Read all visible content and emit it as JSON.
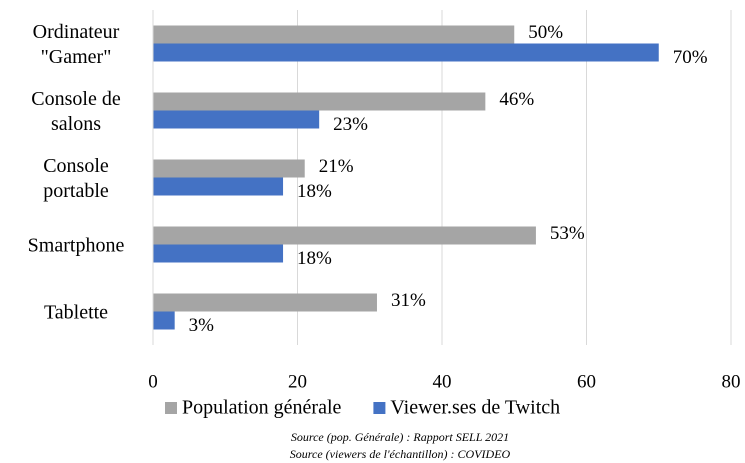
{
  "chart_data": {
    "type": "hbar",
    "categories": [
      "Ordinateur\n\"Gamer\"",
      "Console de\nsalons",
      "Console\nportable",
      "Smartphone",
      "Tablette"
    ],
    "series": [
      {
        "name": "Population générale",
        "color": "#a5a5a5",
        "values": [
          50,
          46,
          21,
          53,
          31
        ],
        "value_labels": [
          "50%",
          "46%",
          "21%",
          "53%",
          "31%"
        ]
      },
      {
        "name": "Viewer.ses de Twitch",
        "color": "#4472c4",
        "values": [
          70,
          23,
          18,
          18,
          3
        ],
        "value_labels": [
          "70%",
          "23%",
          "18%",
          "18%",
          "3%"
        ]
      }
    ],
    "xlim": [
      0,
      80
    ],
    "xticks": [
      0,
      20,
      40,
      60,
      80
    ],
    "grid": true,
    "legend": "bottom",
    "notes": [
      "Source (pop. Générale) : Rapport SELL 2021",
      "Source (viewers de l'échantillon) : COVIDEO"
    ]
  }
}
